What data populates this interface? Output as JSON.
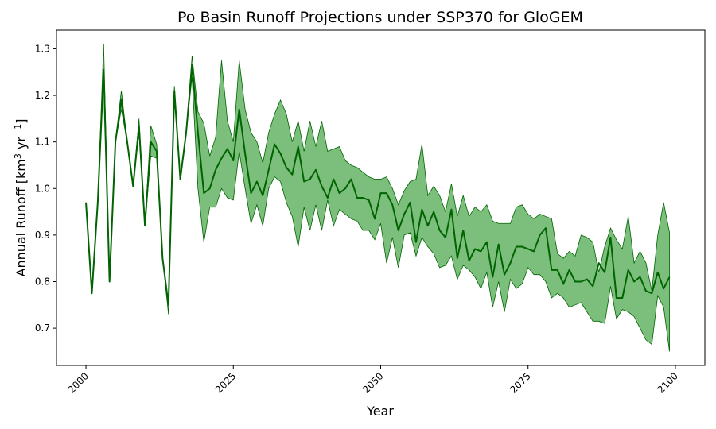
{
  "chart_data": {
    "type": "line",
    "title": "Po Basin Runoff Projections under SSP370 for GloGEM",
    "xlabel": "Year",
    "ylabel_main": "Annual Runoff [km",
    "ylabel_sup1": "3",
    "ylabel_mid": " yr",
    "ylabel_sup2": "−1",
    "ylabel_end": "]",
    "xlim": [
      1995,
      2105
    ],
    "ylim": [
      0.62,
      1.34
    ],
    "x_ticks": [
      2000,
      2025,
      2050,
      2075,
      2100
    ],
    "x_tick_labels": [
      "2000",
      "2025",
      "2050",
      "2075",
      "2100"
    ],
    "y_ticks": [
      0.7,
      0.8,
      0.9,
      1.0,
      1.1,
      1.2,
      1.3
    ],
    "y_tick_labels": [
      "0.7",
      "0.8",
      "0.9",
      "1.0",
      "1.1",
      "1.2",
      "1.3"
    ],
    "grid": false,
    "line_color": "#006400",
    "band_color": "#4aa54a",
    "series": [
      {
        "x": [
          2000,
          2001,
          2002,
          2003,
          2004,
          2005,
          2006,
          2007,
          2008,
          2009,
          2010,
          2011,
          2012,
          2013,
          2014,
          2015,
          2016,
          2017,
          2018,
          2019,
          2020,
          2021,
          2022,
          2023,
          2024,
          2025,
          2026,
          2027,
          2028,
          2029,
          2030,
          2031,
          2032,
          2033,
          2034,
          2035,
          2036,
          2037,
          2038,
          2039,
          2040,
          2041,
          2042,
          2043,
          2044,
          2045,
          2046,
          2047,
          2048,
          2049,
          2050,
          2051,
          2052,
          2053,
          2054,
          2055,
          2056,
          2057,
          2058,
          2059,
          2060,
          2061,
          2062,
          2063,
          2064,
          2065,
          2066,
          2067,
          2068,
          2069,
          2070,
          2071,
          2072,
          2073,
          2074,
          2075,
          2076,
          2077,
          2078,
          2079,
          2080,
          2081,
          2082,
          2083,
          2084,
          2085,
          2086,
          2087,
          2088,
          2089,
          2090,
          2091,
          2092,
          2093,
          2094,
          2095,
          2096,
          2097,
          2098,
          2099
        ],
        "mean": [
          0.97,
          0.775,
          0.97,
          1.255,
          0.8,
          1.1,
          1.19,
          1.1,
          1.005,
          1.135,
          0.92,
          1.1,
          1.08,
          0.85,
          0.75,
          1.21,
          1.02,
          1.12,
          1.265,
          1.12,
          0.99,
          1.0,
          1.04,
          1.065,
          1.085,
          1.06,
          1.17,
          1.075,
          0.99,
          1.015,
          0.985,
          1.04,
          1.095,
          1.075,
          1.045,
          1.03,
          1.09,
          1.015,
          1.02,
          1.04,
          1.005,
          0.98,
          1.02,
          0.99,
          1.0,
          1.02,
          0.98,
          0.98,
          0.975,
          0.935,
          0.99,
          0.99,
          0.965,
          0.91,
          0.945,
          0.97,
          0.885,
          0.955,
          0.92,
          0.95,
          0.91,
          0.895,
          0.955,
          0.85,
          0.91,
          0.845,
          0.87,
          0.865,
          0.885,
          0.81,
          0.88,
          0.815,
          0.84,
          0.875,
          0.875,
          0.87,
          0.865,
          0.9,
          0.915,
          0.825,
          0.825,
          0.795,
          0.825,
          0.8,
          0.8,
          0.805,
          0.79,
          0.84,
          0.82,
          0.895,
          0.765,
          0.765,
          0.825,
          0.8,
          0.81,
          0.78,
          0.775,
          0.82,
          0.785,
          0.81
        ],
        "upper": [
          0.97,
          0.775,
          0.97,
          1.31,
          0.8,
          1.1,
          1.21,
          1.1,
          1.005,
          1.15,
          0.92,
          1.135,
          1.095,
          0.85,
          0.75,
          1.22,
          1.02,
          1.12,
          1.285,
          1.165,
          1.14,
          1.07,
          1.11,
          1.275,
          1.145,
          1.1,
          1.275,
          1.17,
          1.12,
          1.1,
          1.055,
          1.12,
          1.16,
          1.19,
          1.16,
          1.1,
          1.145,
          1.08,
          1.145,
          1.09,
          1.145,
          1.08,
          1.085,
          1.09,
          1.06,
          1.05,
          1.045,
          1.035,
          1.025,
          1.02,
          1.02,
          1.025,
          1.0,
          0.965,
          0.995,
          1.015,
          1.02,
          1.095,
          0.985,
          1.005,
          0.985,
          0.95,
          1.01,
          0.94,
          0.985,
          0.94,
          0.96,
          0.95,
          0.965,
          0.93,
          0.925,
          0.925,
          0.925,
          0.96,
          0.965,
          0.945,
          0.935,
          0.945,
          0.94,
          0.935,
          0.86,
          0.85,
          0.865,
          0.855,
          0.9,
          0.895,
          0.885,
          0.82,
          0.875,
          0.915,
          0.89,
          0.87,
          0.94,
          0.84,
          0.865,
          0.84,
          0.78,
          0.9,
          0.97,
          0.905
        ],
        "lower": [
          0.97,
          0.775,
          0.97,
          1.24,
          0.8,
          1.1,
          1.17,
          1.1,
          1.005,
          1.12,
          0.92,
          1.07,
          1.065,
          0.85,
          0.73,
          1.2,
          1.02,
          1.12,
          1.24,
          1.0,
          0.885,
          0.96,
          0.96,
          1.0,
          0.98,
          0.975,
          1.08,
          1.0,
          0.925,
          0.965,
          0.92,
          1.0,
          1.025,
          1.015,
          0.97,
          0.94,
          0.875,
          0.96,
          0.91,
          0.965,
          0.91,
          0.975,
          0.92,
          0.955,
          0.945,
          0.935,
          0.93,
          0.91,
          0.91,
          0.89,
          0.925,
          0.84,
          0.895,
          0.83,
          0.9,
          0.905,
          0.855,
          0.895,
          0.875,
          0.86,
          0.83,
          0.835,
          0.855,
          0.805,
          0.835,
          0.825,
          0.81,
          0.785,
          0.82,
          0.745,
          0.8,
          0.735,
          0.805,
          0.785,
          0.795,
          0.83,
          0.815,
          0.815,
          0.8,
          0.765,
          0.775,
          0.765,
          0.745,
          0.75,
          0.755,
          0.735,
          0.715,
          0.715,
          0.71,
          0.79,
          0.72,
          0.74,
          0.735,
          0.725,
          0.7,
          0.675,
          0.665,
          0.77,
          0.745,
          0.65
        ]
      }
    ]
  }
}
